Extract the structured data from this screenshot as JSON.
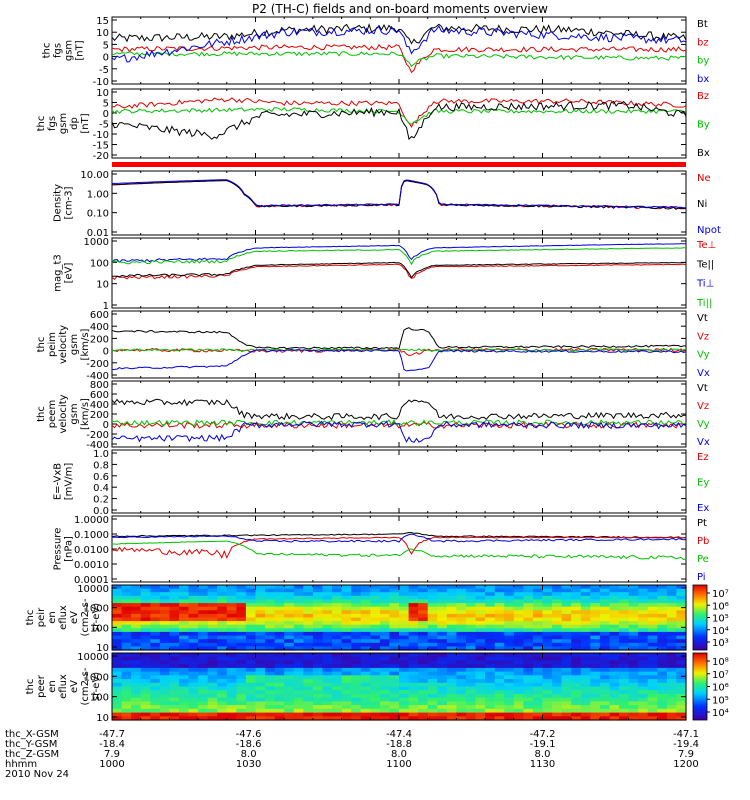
{
  "title": "P2 (TH-C) fields and on-board moments overview",
  "chart_data": {
    "type": "line",
    "panels": [
      {
        "id": "fgs-gsm",
        "ylabel": [
          "thc",
          "fgs",
          "gsm",
          "[nT]"
        ],
        "yticks": [
          "15",
          "10",
          "5",
          "0",
          "-5",
          "-10"
        ],
        "ylim": [
          -14,
          17
        ],
        "log": false,
        "legend": [
          {
            "label": "Bt",
            "color": "#000000"
          },
          {
            "label": "bz",
            "color": "#e00000"
          },
          {
            "label": "by",
            "color": "#00c000"
          },
          {
            "label": "bx",
            "color": "#0000e0"
          }
        ]
      },
      {
        "id": "fgs-gsm-dp",
        "ylabel": [
          "thc",
          "fgs",
          "gsm",
          "dp",
          "[nT]"
        ],
        "yticks": [
          "10",
          "5",
          "0",
          "-5",
          "-10",
          "-15",
          "-20"
        ],
        "ylim": [
          -23,
          11
        ],
        "log": false,
        "legend": [
          {
            "label": "Bz",
            "color": "#e00000"
          },
          {
            "label": "By",
            "color": "#00c000"
          },
          {
            "label": "Bx",
            "color": "#000000"
          }
        ]
      },
      {
        "id": "density",
        "ylabel": [
          "Density",
          "[cm-3]"
        ],
        "yticks": [
          "10.00",
          "1.00",
          "0.10",
          "0.01"
        ],
        "ylim": [
          0.009,
          15
        ],
        "log": true,
        "legend": [
          {
            "label": "Ne",
            "color": "#e00000"
          },
          {
            "label": "Ni",
            "color": "#000000"
          },
          {
            "label": "Npot",
            "color": "#0000e0"
          }
        ]
      },
      {
        "id": "temperature",
        "ylabel": [
          "mag_t3",
          "[eV]"
        ],
        "yticks": [
          "1000",
          "100",
          "10",
          "1"
        ],
        "ylim": [
          1,
          5000
        ],
        "log": true,
        "legend": [
          {
            "label": "Te⊥",
            "color": "#e00000"
          },
          {
            "label": "Te||",
            "color": "#000000"
          },
          {
            "label": "Ti⊥",
            "color": "#0000e0"
          },
          {
            "label": "Ti||",
            "color": "#00c000"
          }
        ]
      },
      {
        "id": "peim-velocity",
        "ylabel": [
          "thc",
          "peim",
          "velocity",
          "gsm",
          "[km/s]"
        ],
        "yticks": [
          "600",
          "400",
          "200",
          "0",
          "-200",
          "-400"
        ],
        "ylim": [
          -450,
          620
        ],
        "log": false,
        "legend": [
          {
            "label": "Vt",
            "color": "#000000"
          },
          {
            "label": "Vz",
            "color": "#e00000"
          },
          {
            "label": "Vy",
            "color": "#00c000"
          },
          {
            "label": "Vx",
            "color": "#0000e0"
          }
        ]
      },
      {
        "id": "peem-velocity",
        "ylabel": [
          "thc",
          "peem",
          "velocity",
          "gsm",
          "[km/s]"
        ],
        "yticks": [
          "800",
          "600",
          "400",
          "200",
          "0",
          "-200",
          "-400"
        ],
        "ylim": [
          -480,
          820
        ],
        "log": false,
        "legend": [
          {
            "label": "Vt",
            "color": "#000000"
          },
          {
            "label": "Vz",
            "color": "#e00000"
          },
          {
            "label": "Vy",
            "color": "#00c000"
          },
          {
            "label": "Vx",
            "color": "#0000e0"
          }
        ]
      },
      {
        "id": "efield",
        "ylabel": [
          "E=-VxB",
          "[mV/m]"
        ],
        "yticks": [
          "1.0",
          "0.8",
          "0.6",
          "0.4",
          "0.2",
          "0.0"
        ],
        "ylim": [
          0,
          1
        ],
        "log": false,
        "legend": [
          {
            "label": "Ez",
            "color": "#e00000"
          },
          {
            "label": "Ey",
            "color": "#00c000"
          },
          {
            "label": "Ex",
            "color": "#0000e0"
          }
        ]
      },
      {
        "id": "pressure",
        "ylabel": [
          "Pressure",
          "[nPa]"
        ],
        "yticks": [
          "1.0000",
          "0.1000",
          "0.0100",
          "0.0010",
          "0.0001"
        ],
        "ylim": [
          0.0001,
          1
        ],
        "log": true,
        "legend": [
          {
            "label": "Pt",
            "color": "#000000"
          },
          {
            "label": "Pb",
            "color": "#e00000"
          },
          {
            "label": "Pe",
            "color": "#00c000"
          },
          {
            "label": "Pi",
            "color": "#0000e0"
          }
        ]
      },
      {
        "id": "peir-spectrogram",
        "ylabel": [
          "thc",
          "peir",
          "en",
          "eflux",
          "eV",
          "(cm2-s-",
          "sr-eV)"
        ],
        "yticks": [
          "10000",
          "1000",
          "100",
          "10"
        ],
        "ylim": [
          8,
          20000
        ],
        "log": true,
        "colorbar_ticks": [
          "10⁷",
          "10⁶",
          "10⁵",
          "10⁴",
          "10³"
        ]
      },
      {
        "id": "peer-spectrogram",
        "ylabel": [
          "thc",
          "peer",
          "en",
          "eflux",
          "eV",
          "(cm2-s-",
          "sr-eV)"
        ],
        "yticks": [
          "10000",
          "1000",
          "100",
          "10"
        ],
        "ylim": [
          8,
          30000
        ],
        "log": true,
        "colorbar_ticks": [
          "10⁸",
          "10⁷",
          "10⁶",
          "10⁵",
          "10⁴"
        ]
      }
    ],
    "time_axis": {
      "row_labels": [
        "thc_X-GSM",
        "thc_Y-GSM",
        "thc_Z-GSM",
        "hhmm",
        "2010 Nov 24"
      ],
      "ticks": [
        {
          "x": "-47.7",
          "y": "-18.4",
          "z": "7.9",
          "t": "1000"
        },
        {
          "x": "-47.6",
          "y": "-18.6",
          "z": "8.0",
          "t": "1030"
        },
        {
          "x": "-47.4",
          "y": "-18.8",
          "z": "8.0",
          "t": "1100"
        },
        {
          "x": "-47.2",
          "y": "-19.1",
          "z": "8.0",
          "t": "1130"
        },
        {
          "x": "-47.1",
          "y": "-19.4",
          "z": "7.9",
          "t": "1200"
        }
      ]
    }
  }
}
